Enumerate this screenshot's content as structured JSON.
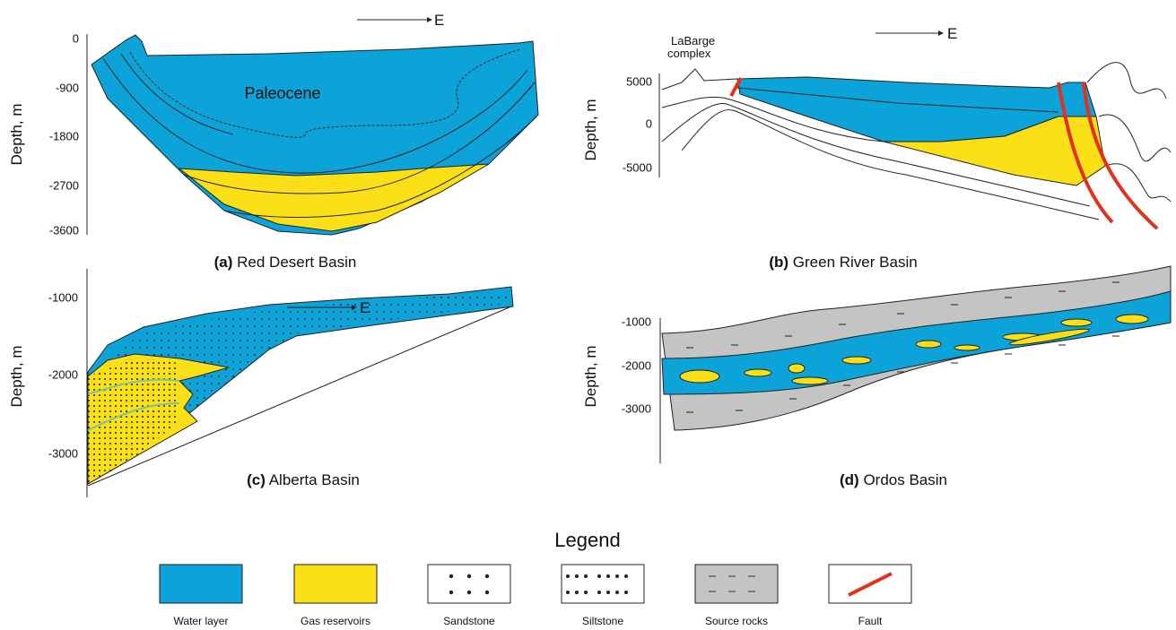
{
  "panels": [
    {
      "label": "(a)",
      "title": "Red Desert Basin",
      "axis_label": "Depth, m",
      "ticks": [
        0,
        -900,
        -1800,
        -2700,
        -3600
      ],
      "direction": "E",
      "annotations": [
        "Paleocene"
      ]
    },
    {
      "label": "(b)",
      "title": "Green River Basin",
      "axis_label": "Depth, m",
      "ticks": [
        5000,
        0,
        -5000
      ],
      "direction": "E",
      "annotations": [
        "LaBarge",
        "complex"
      ]
    },
    {
      "label": "(c)",
      "title": "Alberta Basin",
      "axis_label": "Depth, m",
      "ticks": [
        -1000,
        -2000,
        -3000
      ],
      "direction": "E"
    },
    {
      "label": "(d)",
      "title": "Ordos Basin",
      "axis_label": "Depth, m",
      "ticks": [
        -1000,
        -2000,
        -3000
      ]
    }
  ],
  "legend": {
    "title": "Legend",
    "items": [
      "Water layer",
      "Gas reservoirs",
      "Sandstone",
      "Siltstone",
      "Source rocks",
      "Fault"
    ]
  }
}
